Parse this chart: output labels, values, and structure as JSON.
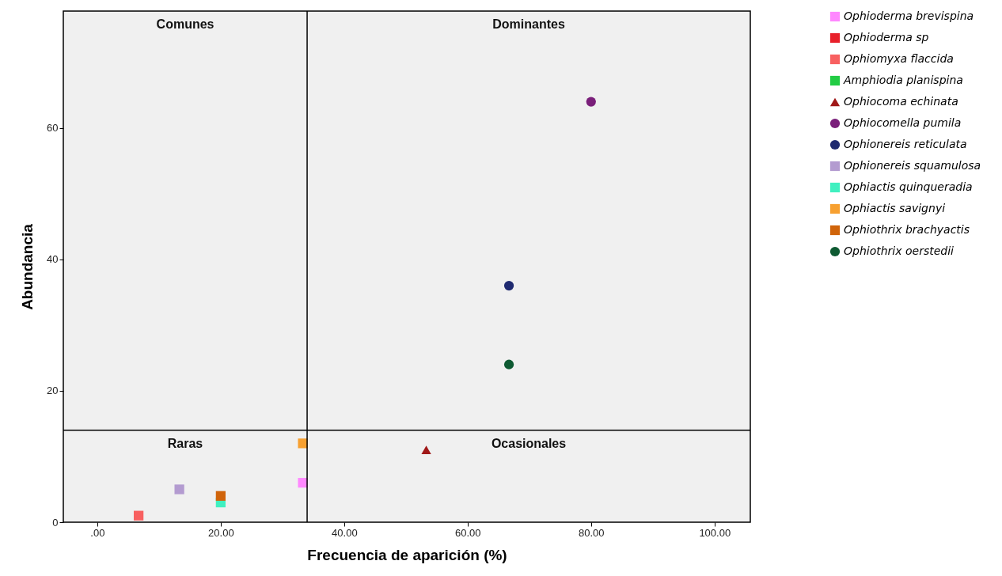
{
  "chart_data": {
    "type": "scatter",
    "xlabel": "Frecuencia de aparición (%)",
    "ylabel": "Abundancia",
    "xlim": [
      -5.5,
      105.8
    ],
    "ylim": [
      0,
      77.8
    ],
    "xticks": [
      {
        "value": 0,
        "label": ".00"
      },
      {
        "value": 20,
        "label": "20.00"
      },
      {
        "value": 40,
        "label": "40.00"
      },
      {
        "value": 60,
        "label": "60.00"
      },
      {
        "value": 80,
        "label": "80.00"
      },
      {
        "value": 100,
        "label": "100.00"
      }
    ],
    "yticks": [
      0,
      20,
      40,
      60
    ],
    "grid": false,
    "legend": "right",
    "ref_lines": [
      {
        "axis": "x",
        "value": 34
      },
      {
        "axis": "y",
        "value": 14
      }
    ],
    "annotations": [
      "Comunes",
      "Dominantes",
      "Raras",
      "Ocasionales"
    ],
    "series": [
      {
        "name": "Ophioderma brevispina",
        "color": "#ff88ff",
        "marker": "square",
        "x": [
          33.3
        ],
        "values": [
          6
        ]
      },
      {
        "name": "Ophioderma sp",
        "color": "#e8202a",
        "marker": "square",
        "x": [
          null
        ],
        "values": [
          null
        ]
      },
      {
        "name": "Ophiomyxa flaccida",
        "color": "#f86060",
        "marker": "square",
        "x": [
          6.7
        ],
        "values": [
          1
        ]
      },
      {
        "name": "Amphiodia planispina",
        "color": "#22cc44",
        "marker": "square",
        "x": [
          null
        ],
        "values": [
          null
        ]
      },
      {
        "name": "Ophiocoma echinata",
        "color": "#a01818",
        "marker": "triangle",
        "x": [
          53.3
        ],
        "values": [
          11
        ]
      },
      {
        "name": "Ophiocomella pumila",
        "color": "#7a1f7a",
        "marker": "circle",
        "x": [
          80
        ],
        "values": [
          64
        ]
      },
      {
        "name": "Ophionereis reticulata",
        "color": "#1f2a70",
        "marker": "circle",
        "x": [
          66.7
        ],
        "values": [
          36
        ]
      },
      {
        "name": "Ophionereis squamulosa",
        "color": "#b39bd0",
        "marker": "square",
        "x": [
          13.3
        ],
        "values": [
          5
        ]
      },
      {
        "name": "Ophiactis quinqueradia",
        "color": "#40f0c0",
        "marker": "square",
        "x": [
          20
        ],
        "values": [
          3
        ]
      },
      {
        "name": "Ophiactis savignyi",
        "color": "#f7a030",
        "marker": "square",
        "x": [
          33.3
        ],
        "values": [
          12
        ]
      },
      {
        "name": "Ophiothrix brachyactis",
        "color": "#d0640a",
        "marker": "square",
        "x": [
          20
        ],
        "values": [
          4
        ]
      },
      {
        "name": "Ophiothrix oerstedii",
        "color": "#0e5a32",
        "marker": "circle",
        "x": [
          66.7
        ],
        "values": [
          24
        ]
      }
    ]
  }
}
